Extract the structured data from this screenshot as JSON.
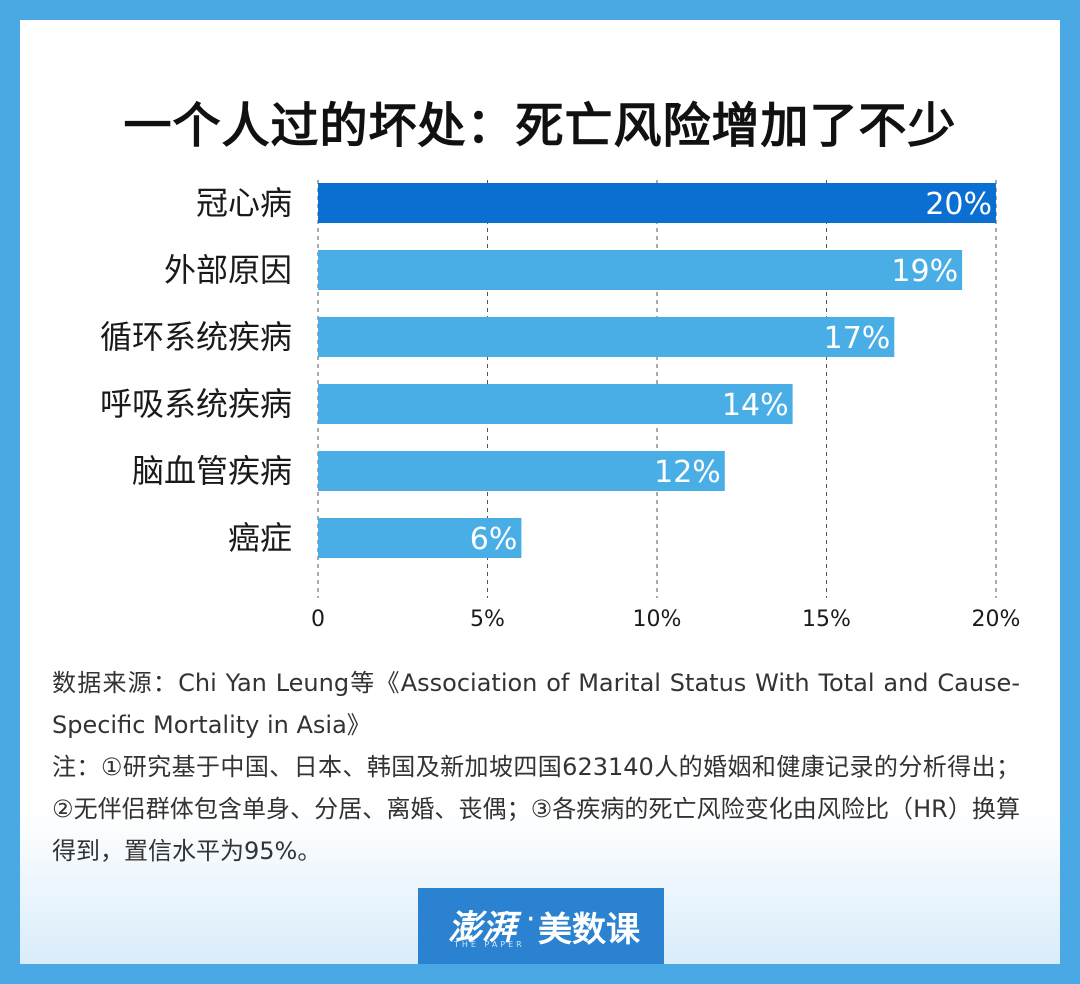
{
  "header": {
    "title": "一个人过的坏处：死亡风险增加了不少"
  },
  "chart_data": {
    "type": "bar",
    "orientation": "horizontal",
    "categories": [
      "冠心病",
      "外部原因",
      "循环系统疾病",
      "呼吸系统疾病",
      "脑血管疾病",
      "癌症"
    ],
    "values": [
      20,
      19,
      17,
      14,
      12,
      6
    ],
    "value_labels": [
      "20%",
      "19%",
      "17%",
      "14%",
      "12%",
      "6%"
    ],
    "xlim": [
      0,
      20
    ],
    "x_ticks": [
      0,
      5,
      10,
      15,
      20
    ],
    "x_tick_labels": [
      "0",
      "5%",
      "10%",
      "15%",
      "20%"
    ],
    "grid": "vertical-dashed",
    "colors": {
      "highlight": "#0a6fd0",
      "bar": "#4aaee6"
    },
    "title": "一个人过的坏处：死亡风险增加了不少",
    "xlabel": "",
    "ylabel": ""
  },
  "notes": {
    "source": "数据来源：Chi Yan Leung等《Association of Marital Status With Total and Cause-Specific Mortality in Asia》",
    "note": "注：①研究基于中国、日本、韩国及新加坡四国623140人的婚姻和健康记录的分析得出；②无伴侣群体包含单身、分居、离婚、丧偶；③各疾病的死亡风险变化由风险比（HR）换算得到，置信水平为95%。"
  },
  "logo": {
    "brand": "澎湃",
    "brand_sub": "THE PAPER",
    "separator": "·",
    "name": "美数课"
  },
  "colors": {
    "frame": "#4aa8e4",
    "logo_bg": "#2a82d0"
  }
}
